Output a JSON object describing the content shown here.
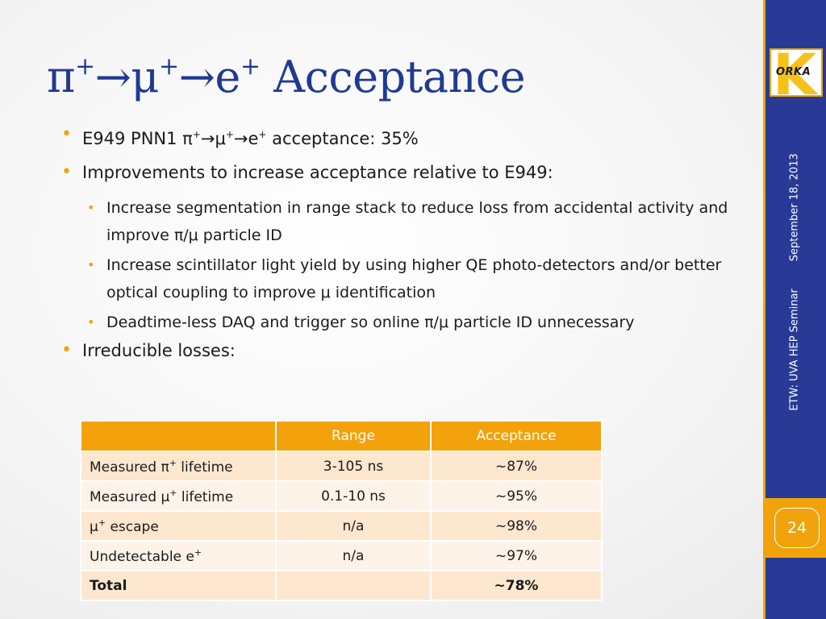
{
  "title": {
    "pi": "π",
    "arrow1": "→",
    "mu": "μ",
    "arrow2": "→",
    "e": "e",
    "plus": "+",
    "rest": " Acceptance"
  },
  "bullets": {
    "b1": {
      "pre": "E949 PNN1 π",
      "mid1": "→μ",
      "mid2": "→e",
      "post": " acceptance: 35%"
    },
    "b2": "Improvements to increase acceptance relative to E949:",
    "s1": "Increase segmentation in range stack to reduce loss from accidental activity and improve π/μ particle ID",
    "s2": "Increase scintillator light yield by using higher QE photo-detectors and/or better optical coupling to improve μ identification",
    "s3": "Deadtime-less DAQ and trigger so online π/μ particle ID unnecessary",
    "b3": "Irreducible losses:"
  },
  "sidebar": {
    "logo_text": "ORKA",
    "logo_letter": "K",
    "date": "September 18, 2013",
    "event": "ETW: UVA HEP Seminar",
    "page_number": "24"
  },
  "table": {
    "headers": [
      "",
      "Range",
      "Acceptance"
    ],
    "rows": [
      {
        "label": "Measured π",
        "sup": "+",
        "label_suffix": " lifetime",
        "range": "3-105 ns",
        "acceptance": "~87%"
      },
      {
        "label": "Measured μ",
        "sup": "+",
        "label_suffix": " lifetime",
        "range": "0.1-10 ns",
        "acceptance": "~95%"
      },
      {
        "label": "μ",
        "sup": "+",
        "label_suffix": " escape",
        "range": "n/a",
        "acceptance": "~98%"
      },
      {
        "label": "Undetectable e",
        "sup": "+",
        "label_suffix": "",
        "range": "n/a",
        "acceptance": "~97%"
      },
      {
        "label": "Total",
        "sup": "",
        "label_suffix": "",
        "range": "",
        "acceptance": "~78%"
      }
    ]
  },
  "colors": {
    "title_blue": "#1f3a94",
    "accent_orange": "#f4a20b",
    "sidebar_blue": "#283a96"
  }
}
